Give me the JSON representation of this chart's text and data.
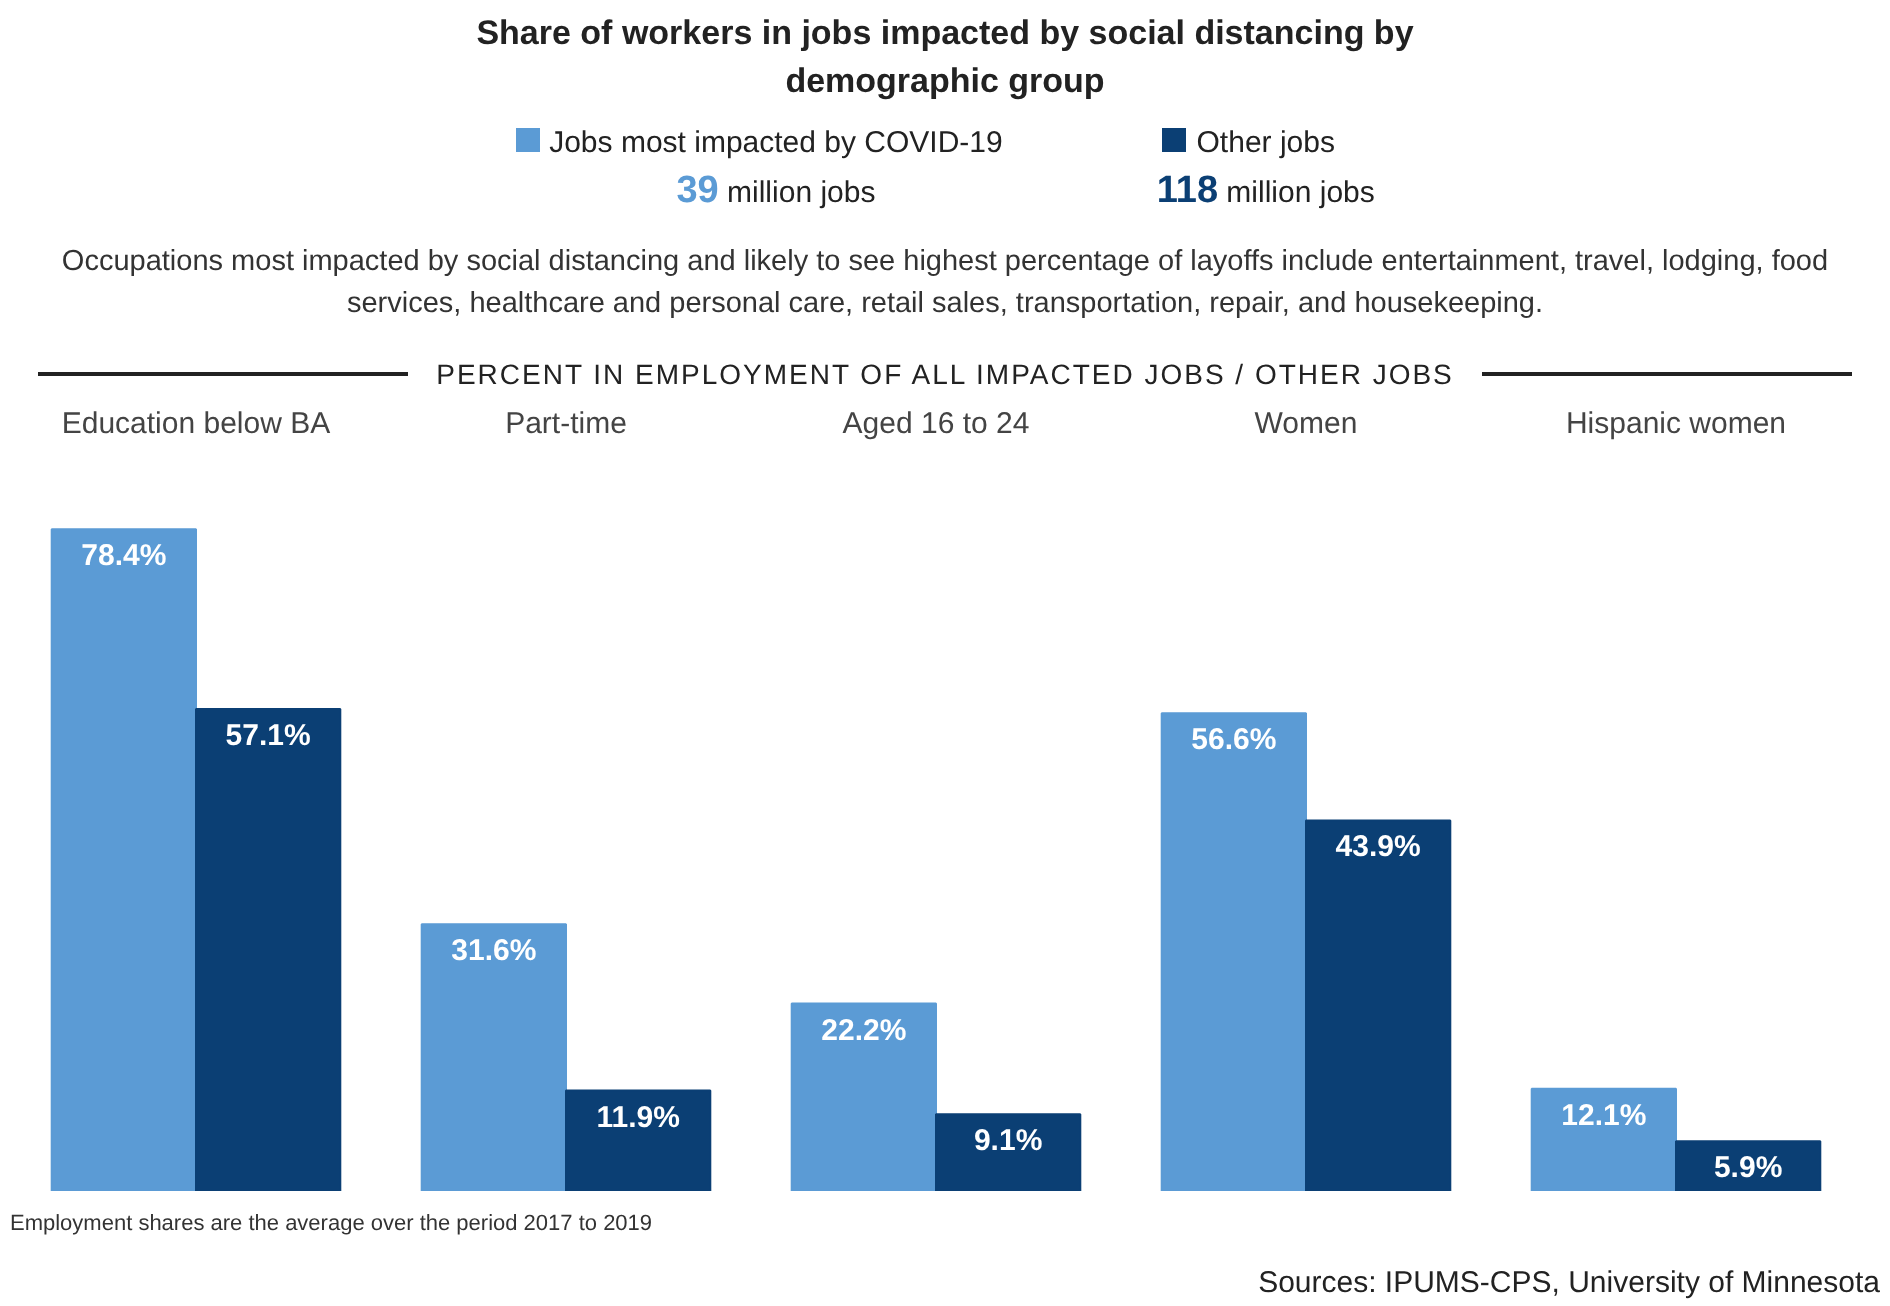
{
  "chart_data": {
    "type": "bar",
    "title": "Share of workers in jobs impacted by social distancing by demographic group",
    "subtitle": "Occupations most impacted by social distancing and likely to see highest percentage of layoffs include entertainment, travel, lodging, food services, healthcare and personal care, retail sales, transportation, repair, and housekeeping.",
    "ylabel": "PERCENT IN EMPLOYMENT OF ALL IMPACTED JOBS / OTHER JOBS",
    "categories": [
      "Education below BA",
      "Part-time",
      "Aged 16 to 24",
      "Women",
      "Hispanic women"
    ],
    "series": [
      {
        "name": "Jobs most impacted by COVID-19",
        "color": "#5b9bd5",
        "values": [
          78.4,
          31.6,
          22.2,
          56.6,
          12.1
        ],
        "value_labels": [
          "78.4%",
          "31.6%",
          "22.2%",
          "56.6%",
          "12.1%"
        ]
      },
      {
        "name": "Other jobs",
        "color": "#0b3f74",
        "values": [
          57.1,
          11.9,
          9.1,
          43.9,
          5.9
        ],
        "value_labels": [
          "57.1%",
          "11.9%",
          "9.1%",
          "43.9%",
          "5.9%"
        ]
      }
    ],
    "annotations": [
      "39 million jobs",
      "118 million jobs",
      "Employment shares are the average over the period 2017 to 2019",
      "Sources: IPUMS-CPS, University of Minnesota"
    ],
    "legend": "top",
    "grid": false,
    "tick_labels": "x"
  }
}
